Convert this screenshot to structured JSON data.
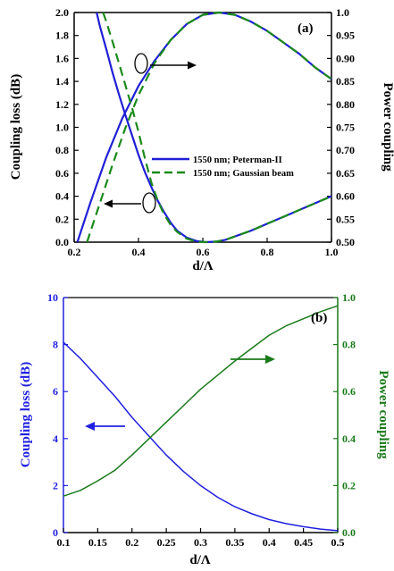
{
  "chart_data": [
    {
      "type": "line",
      "panel_label": "(a)",
      "xlabel": "d/Λ",
      "ylabel": "Coupling loss (dB)",
      "y2label": "Power coupling",
      "xlim": [
        0.2,
        1.0
      ],
      "ylim": [
        0,
        2.0
      ],
      "y2lim": [
        0.5,
        1.0
      ],
      "xticks": [
        "0.2",
        "0.4",
        "0.6",
        "0.8",
        "1.0"
      ],
      "yticks": [
        "0.0",
        "0.2",
        "0.4",
        "0.6",
        "0.8",
        "1.0",
        "1.2",
        "1.4",
        "1.6",
        "1.8",
        "2.0"
      ],
      "y2ticks": [
        "0.50",
        "0.55",
        "0.60",
        "0.65",
        "0.70",
        "0.75",
        "0.80",
        "0.85",
        "0.90",
        "0.95",
        "1.0"
      ],
      "legend_position": "center-right",
      "series": [
        {
          "name": "1550 nm; Peterman-II",
          "axis": "left",
          "style": "solid",
          "color": "#1f1fd6",
          "x": [
            0.27,
            0.28,
            0.3,
            0.32,
            0.34,
            0.36,
            0.38,
            0.4,
            0.42,
            0.44,
            0.46,
            0.48,
            0.5,
            0.52,
            0.55,
            0.58,
            0.61,
            0.64,
            0.67,
            0.7,
            0.75,
            0.8,
            0.85,
            0.9,
            0.95,
            1.0
          ],
          "y": [
            2.0,
            1.88,
            1.68,
            1.47,
            1.28,
            1.1,
            0.93,
            0.76,
            0.61,
            0.48,
            0.36,
            0.26,
            0.17,
            0.1,
            0.04,
            0.01,
            0.0,
            0.005,
            0.02,
            0.05,
            0.1,
            0.16,
            0.22,
            0.28,
            0.34,
            0.4
          ]
        },
        {
          "name": "1550 nm; Peterman-II",
          "axis": "right",
          "style": "solid",
          "color": "#1f1fd6",
          "x": [
            0.21,
            0.25,
            0.3,
            0.35,
            0.4,
            0.45,
            0.5,
            0.55,
            0.6,
            0.65,
            0.7,
            0.75,
            0.8,
            0.85,
            0.9,
            0.95,
            1.0
          ],
          "y": [
            0.5,
            0.585,
            0.685,
            0.77,
            0.84,
            0.895,
            0.94,
            0.975,
            0.995,
            1.0,
            0.995,
            0.98,
            0.96,
            0.935,
            0.91,
            0.88,
            0.855
          ]
        },
        {
          "name": "1550 nm; Gaussian beam",
          "axis": "left",
          "style": "dashed",
          "color": "#1a8a1a",
          "x": [
            0.29,
            0.3,
            0.32,
            0.34,
            0.36,
            0.38,
            0.4,
            0.42,
            0.44,
            0.46,
            0.48,
            0.5,
            0.52,
            0.55,
            0.58,
            0.61,
            0.64,
            0.67,
            0.7,
            0.75,
            0.8,
            0.85,
            0.9,
            0.95,
            1.0
          ],
          "y": [
            2.0,
            1.92,
            1.74,
            1.55,
            1.36,
            1.17,
            0.96,
            0.73,
            0.52,
            0.36,
            0.24,
            0.15,
            0.09,
            0.03,
            0.005,
            0.0,
            0.005,
            0.02,
            0.05,
            0.1,
            0.16,
            0.22,
            0.28,
            0.34,
            0.4
          ]
        },
        {
          "name": "1550 nm; Gaussian beam",
          "axis": "right",
          "style": "dashed",
          "color": "#1a8a1a",
          "x": [
            0.24,
            0.28,
            0.32,
            0.36,
            0.4,
            0.45,
            0.5,
            0.55,
            0.6,
            0.65,
            0.7,
            0.75,
            0.8,
            0.85,
            0.9,
            0.95,
            1.0
          ],
          "y": [
            0.5,
            0.585,
            0.67,
            0.75,
            0.82,
            0.89,
            0.94,
            0.975,
            0.995,
            1.0,
            0.995,
            0.98,
            0.96,
            0.935,
            0.91,
            0.88,
            0.855
          ]
        }
      ]
    },
    {
      "type": "line",
      "panel_label": "(b)",
      "xlabel": "d/Λ",
      "ylabel": "Coupling loss (dB)",
      "y2label": "Power coupling",
      "xlim": [
        0.1,
        0.5
      ],
      "ylim": [
        0,
        10
      ],
      "y2lim": [
        0,
        1.0
      ],
      "xticks": [
        "0.1",
        "0.15",
        "0.2",
        "0.25",
        "0.3",
        "0.35",
        "0.4",
        "0.45",
        "0.5"
      ],
      "yticks": [
        "0",
        "2",
        "4",
        "6",
        "8",
        "10"
      ],
      "y2ticks": [
        "0.0",
        "0.2",
        "0.4",
        "0.6",
        "0.8",
        "1.0"
      ],
      "series": [
        {
          "axis": "left",
          "color": "#2020e0",
          "x": [
            0.1,
            0.125,
            0.15,
            0.175,
            0.2,
            0.225,
            0.25,
            0.275,
            0.3,
            0.325,
            0.35,
            0.375,
            0.4,
            0.425,
            0.45,
            0.475,
            0.5
          ],
          "y": [
            8.1,
            7.4,
            6.6,
            5.8,
            4.9,
            4.1,
            3.3,
            2.6,
            2.0,
            1.5,
            1.1,
            0.8,
            0.55,
            0.38,
            0.25,
            0.15,
            0.08
          ]
        },
        {
          "axis": "right",
          "color": "#1a7a1a",
          "x": [
            0.1,
            0.125,
            0.15,
            0.175,
            0.2,
            0.225,
            0.25,
            0.275,
            0.3,
            0.325,
            0.35,
            0.375,
            0.4,
            0.425,
            0.45,
            0.475,
            0.5
          ],
          "y": [
            0.155,
            0.18,
            0.22,
            0.265,
            0.33,
            0.4,
            0.47,
            0.54,
            0.61,
            0.67,
            0.73,
            0.785,
            0.84,
            0.88,
            0.91,
            0.94,
            0.965
          ]
        }
      ]
    }
  ]
}
